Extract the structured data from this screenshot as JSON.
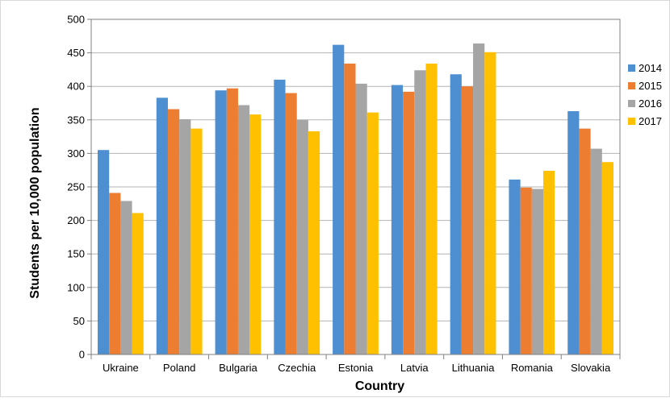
{
  "chart_data": {
    "type": "bar",
    "title": "",
    "xlabel": "Country",
    "ylabel": "Students per 10,000 population",
    "ylim": [
      0,
      500
    ],
    "yticks": [
      "0",
      "50",
      "100",
      "150",
      "200",
      "250",
      "300",
      "350",
      "400",
      "450",
      "500"
    ],
    "categories": [
      "Ukraine",
      "Poland",
      "Bulgaria",
      "Czechia",
      "Estonia",
      "Latvia",
      "Lithuania",
      "Romania",
      "Slovakia"
    ],
    "series": [
      {
        "name": "2014",
        "color": "#4e8fd1",
        "values": [
          305,
          383,
          394,
          410,
          462,
          402,
          418,
          261,
          363
        ]
      },
      {
        "name": "2015",
        "color": "#ed7d31",
        "values": [
          241,
          366,
          397,
          390,
          434,
          392,
          400,
          249,
          337
        ]
      },
      {
        "name": "2016",
        "color": "#a5a5a5",
        "values": [
          229,
          351,
          372,
          350,
          404,
          424,
          464,
          247,
          307
        ]
      },
      {
        "name": "2017",
        "color": "#ffc000",
        "values": [
          211,
          337,
          358,
          333,
          361,
          434,
          451,
          274,
          287
        ]
      }
    ],
    "grid": true,
    "legend": "right"
  }
}
